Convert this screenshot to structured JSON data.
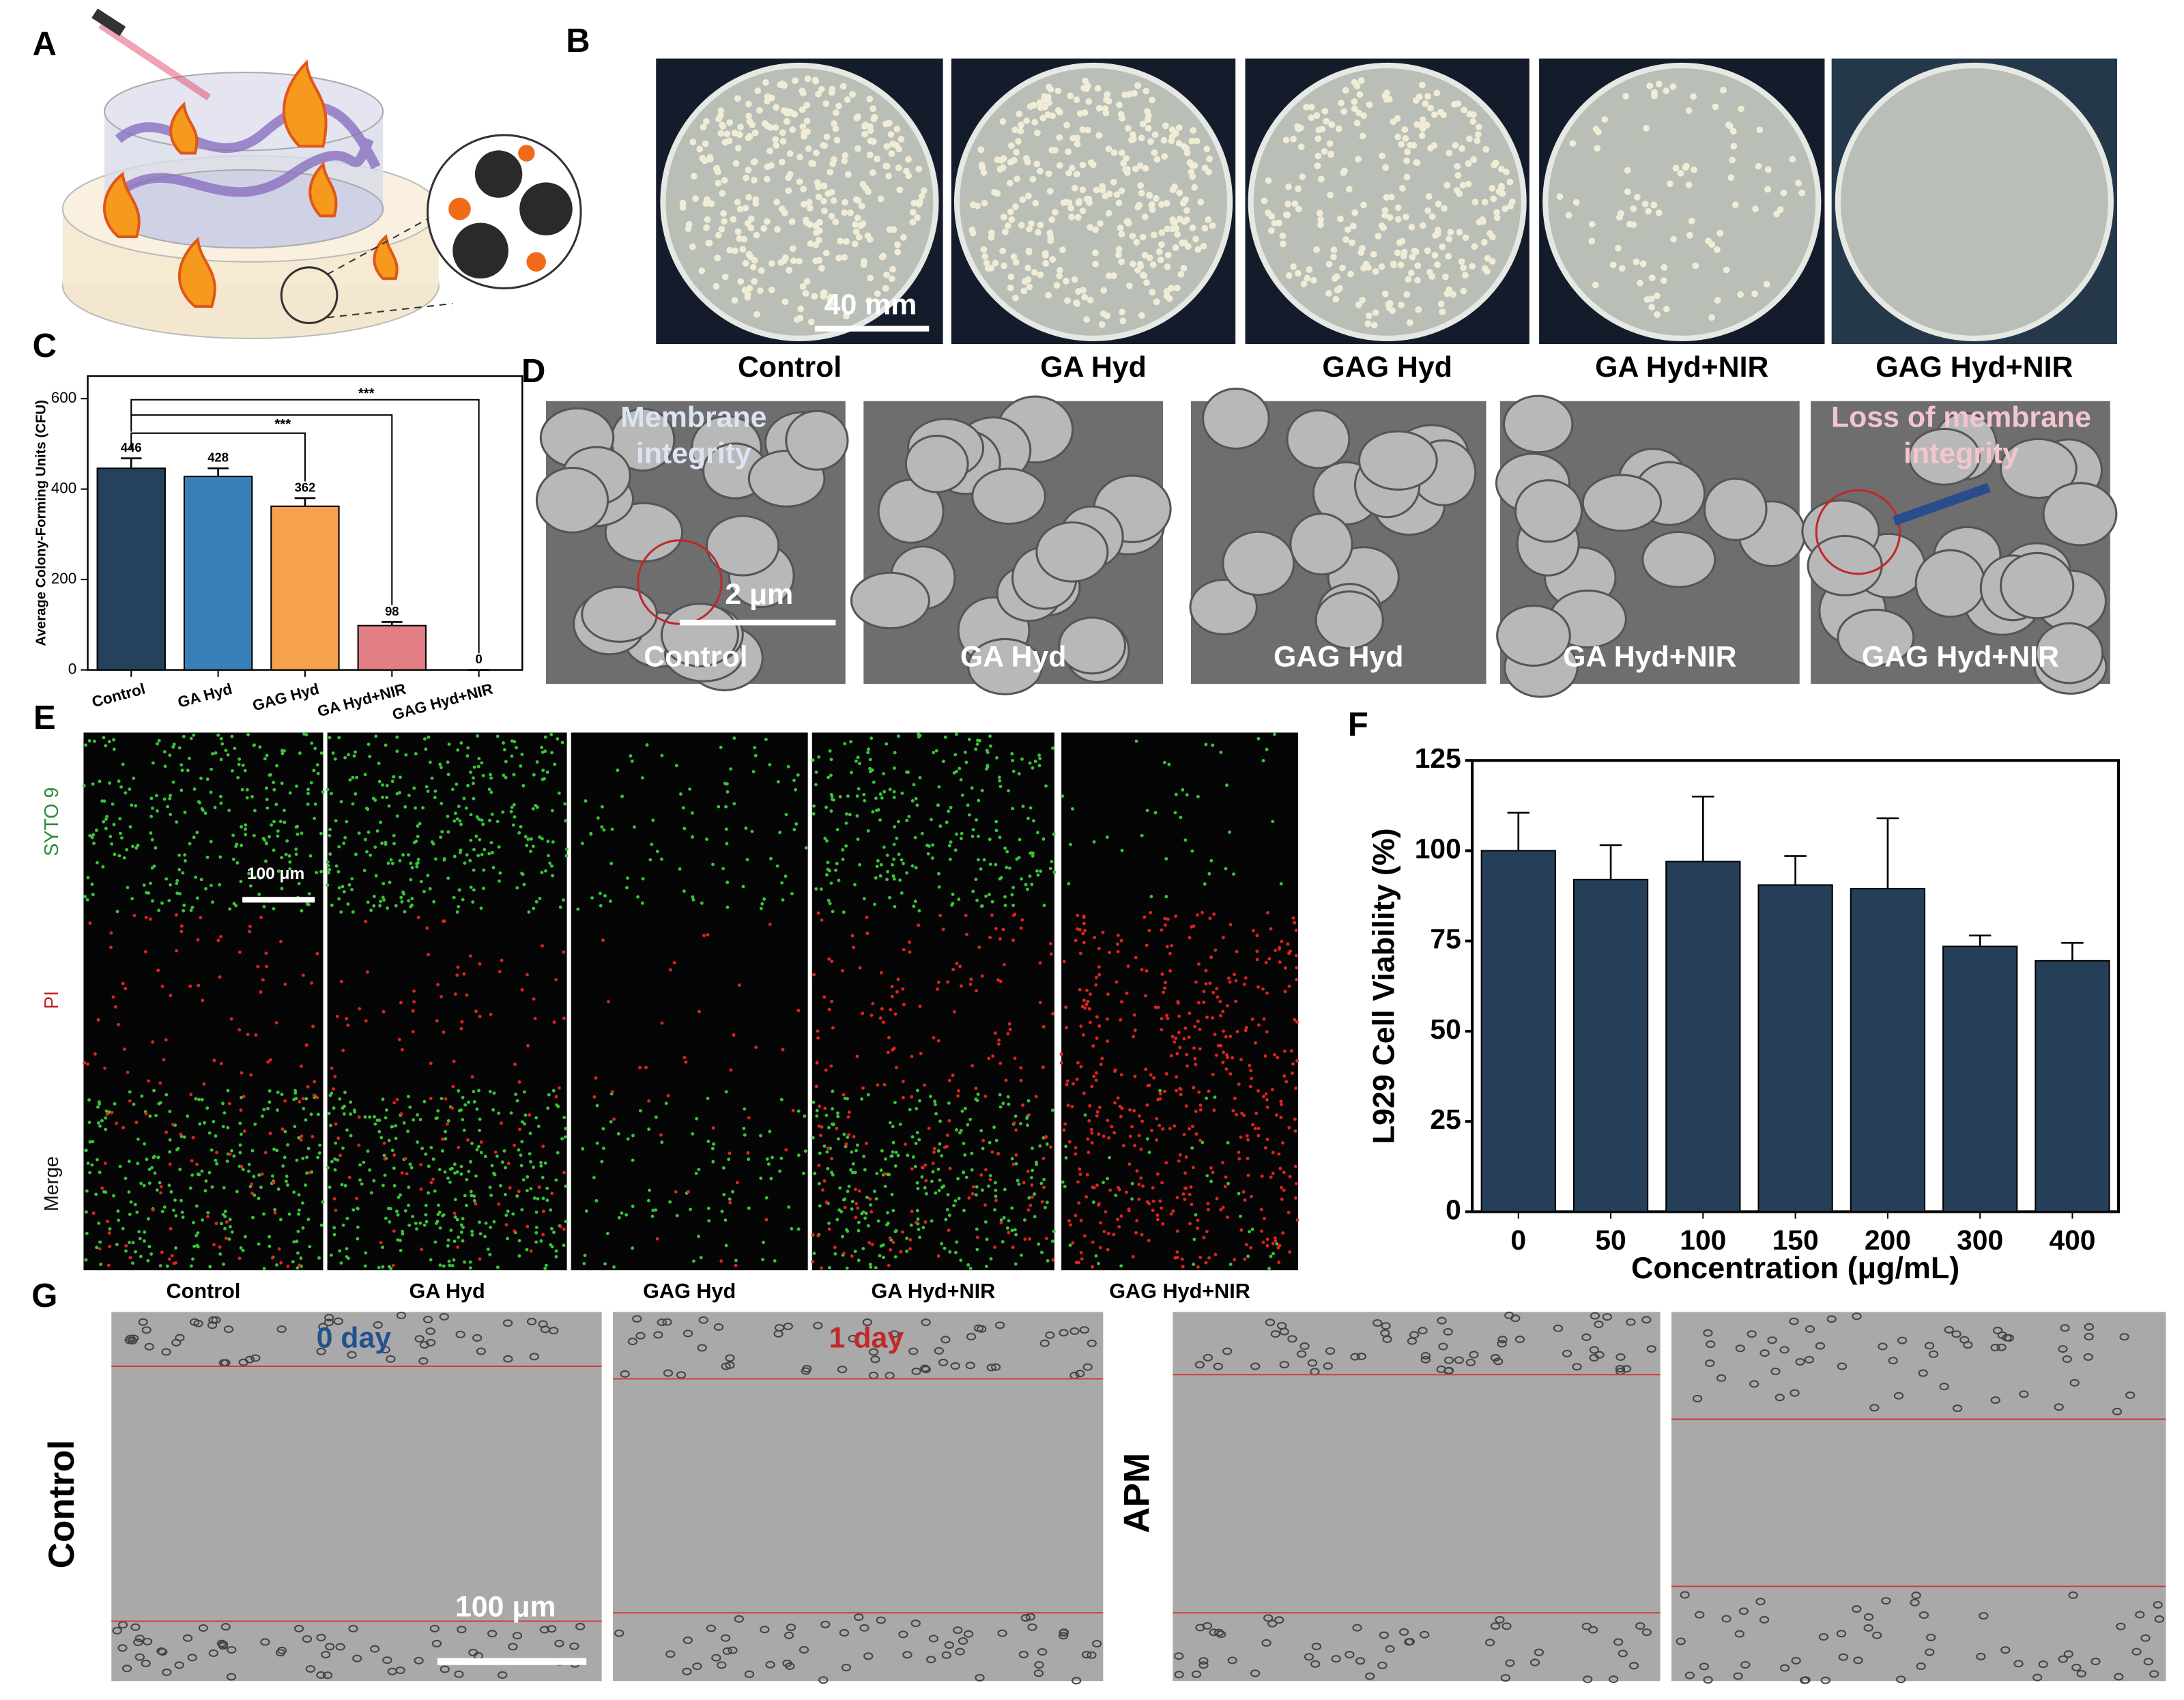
{
  "panel_labels": [
    "A",
    "B",
    "C",
    "D",
    "E",
    "F",
    "G"
  ],
  "panel_b": {
    "scale_bar": "40 mm",
    "captions": [
      "Control",
      "GA Hyd",
      "GAG Hyd",
      "GA Hyd+NIR",
      "GAG Hyd+NIR"
    ]
  },
  "panel_d": {
    "annotation_control": [
      "Membrane",
      "integrity"
    ],
    "annotation_treated": [
      "Loss of membrane",
      "integrity"
    ],
    "scale_bar": "2 μm",
    "labels": [
      "Control",
      "GA Hyd",
      "GAG Hyd",
      "GA Hyd+NIR",
      "GAG Hyd+NIR"
    ]
  },
  "panel_e": {
    "channels": [
      "SYTO 9",
      "PI",
      "Merge"
    ],
    "scale_bar": "100 μm",
    "captions": [
      "Control",
      "GA Hyd",
      "GAG Hyd",
      "GA Hyd+NIR",
      "GAG Hyd+NIR"
    ]
  },
  "panel_g": {
    "time_labels": [
      "0 day",
      "1 day"
    ],
    "groups": [
      "Control",
      "APM"
    ],
    "scale_bar": "100 μm"
  },
  "chart_data": [
    {
      "type": "bar",
      "y_label": "Average Colony-Forming Units (CFU)",
      "categories": [
        "Control",
        "GA Hyd",
        "GAG Hyd",
        "GA Hyd+NIR",
        "GAG Hyd+NIR"
      ],
      "values": [
        446,
        428,
        362,
        98,
        0
      ],
      "errors": [
        22,
        18,
        18,
        8,
        0
      ],
      "colors": [
        "#26415c",
        "#3a80b8",
        "#f6a14e",
        "#e27f84",
        "#b0b0b0"
      ],
      "significance": [
        "***",
        "***"
      ],
      "ylim": [
        0,
        650
      ],
      "yticks": [
        0,
        200,
        400,
        600
      ]
    },
    {
      "type": "bar",
      "x_label": "Concentration (μg/mL)",
      "y_label": "L929 Cell Viability (%)",
      "categories": [
        "0",
        "50",
        "100",
        "150",
        "200",
        "300",
        "400"
      ],
      "values": [
        100,
        92,
        97,
        90.5,
        89.5,
        73.5,
        69.5
      ],
      "errors": [
        10.5,
        9.5,
        18,
        8,
        19.5,
        3,
        5
      ],
      "color": "#263f58",
      "ylim": [
        0,
        125
      ],
      "yticks": [
        0,
        25,
        50,
        75,
        100,
        125
      ]
    }
  ]
}
